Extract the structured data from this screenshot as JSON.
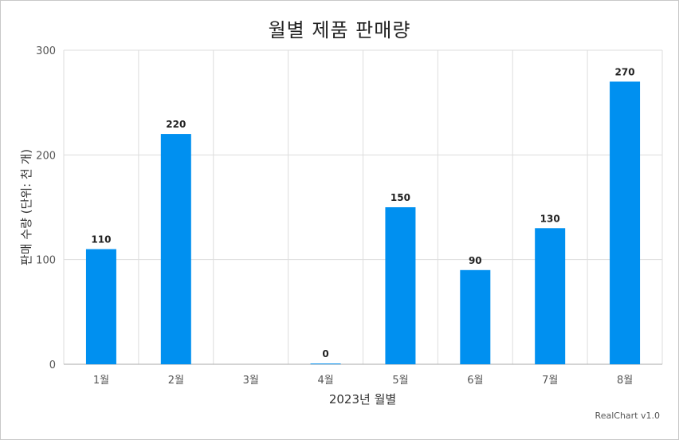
{
  "chart_data": {
    "type": "bar",
    "title": "월별 제품 판매량",
    "xlabel": "2023년 월별",
    "ylabel": "판매 수량 (단위: 천 개)",
    "categories": [
      "1월",
      "2월",
      "3월",
      "4월",
      "5월",
      "6월",
      "7월",
      "8월"
    ],
    "values": [
      110,
      220,
      null,
      0,
      150,
      90,
      130,
      270
    ],
    "value_labels": [
      "110",
      "220",
      "",
      "0",
      "150",
      "90",
      "130",
      "270"
    ],
    "ylim": [
      0,
      300
    ],
    "yticks": [
      "0",
      "100",
      "200",
      "300"
    ],
    "grid": true,
    "bar_color": "#0090f0"
  },
  "credit": "RealChart v1.0"
}
